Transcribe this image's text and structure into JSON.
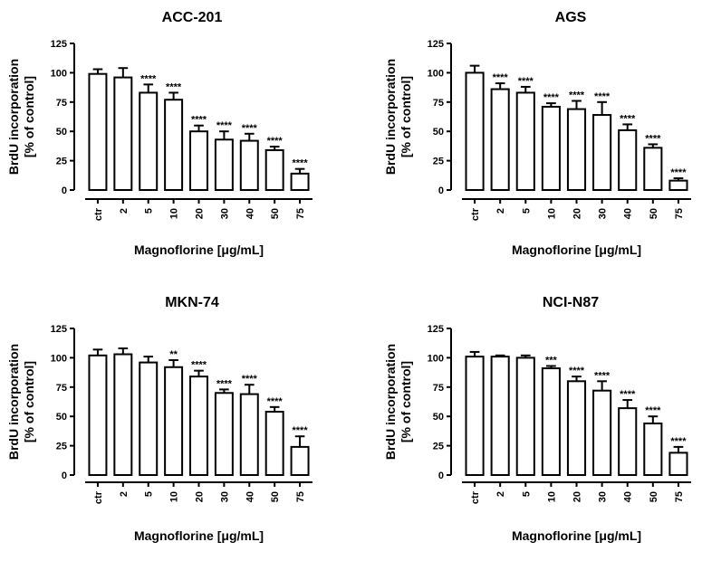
{
  "chart_data": [
    {
      "type": "bar",
      "title": "ACC-201",
      "ylabel": [
        "BrdU incorporation",
        "[% of control]"
      ],
      "xlabel": "Magnoflorine [μg/mL]",
      "categories": [
        "ctr",
        "2",
        "5",
        "10",
        "20",
        "30",
        "40",
        "50",
        "75"
      ],
      "values": [
        99,
        96,
        83,
        77,
        50,
        43,
        42,
        34,
        14
      ],
      "errors": [
        4,
        8,
        7,
        6,
        5,
        7,
        6,
        3,
        4
      ],
      "significance": [
        "",
        "",
        "****",
        "****",
        "****",
        "****",
        "****",
        "****",
        "****"
      ],
      "ylim": [
        0,
        125
      ],
      "yticks": [
        "0",
        "25",
        "50",
        "75",
        "100",
        "125"
      ]
    },
    {
      "type": "bar",
      "title": "AGS",
      "ylabel": [
        "BrdU incorporation",
        "[% of control]"
      ],
      "xlabel": "Magnoflorine [μg/mL]",
      "categories": [
        "ctr",
        "2",
        "5",
        "10",
        "20",
        "30",
        "40",
        "50",
        "75"
      ],
      "values": [
        100,
        86,
        83,
        71,
        69,
        64,
        51,
        36,
        8
      ],
      "errors": [
        6,
        5,
        5,
        3,
        7,
        11,
        5,
        3,
        2
      ],
      "significance": [
        "",
        "****",
        "****",
        "****",
        "****",
        "****",
        "****",
        "****",
        "****"
      ],
      "ylim": [
        0,
        125
      ],
      "yticks": [
        "0",
        "25",
        "50",
        "75",
        "100",
        "125"
      ]
    },
    {
      "type": "bar",
      "title": "MKN-74",
      "ylabel": [
        "BrdU incorporation",
        "[% of control]"
      ],
      "xlabel": "Magnoflorine [μg/mL]",
      "categories": [
        "ctr",
        "2",
        "5",
        "10",
        "20",
        "30",
        "40",
        "50",
        "75"
      ],
      "values": [
        102,
        103,
        96,
        92,
        84,
        70,
        69,
        54,
        24
      ],
      "errors": [
        5,
        5,
        5,
        6,
        5,
        3,
        8,
        4,
        9
      ],
      "significance": [
        "",
        "",
        "",
        "**",
        "****",
        "****",
        "****",
        "****",
        "****"
      ],
      "ylim": [
        0,
        125
      ],
      "yticks": [
        "0",
        "25",
        "50",
        "75",
        "100",
        "125"
      ]
    },
    {
      "type": "bar",
      "title": "NCI-N87",
      "ylabel": [
        "BrdU incorporation",
        "[% of control]"
      ],
      "xlabel": "Magnoflorine [μg/mL]",
      "categories": [
        "ctr",
        "2",
        "5",
        "10",
        "20",
        "30",
        "40",
        "50",
        "75"
      ],
      "values": [
        101,
        101,
        100,
        91,
        80,
        72,
        57,
        44,
        19
      ],
      "errors": [
        4,
        1,
        2,
        2,
        4,
        8,
        7,
        6,
        5
      ],
      "significance": [
        "",
        "",
        "",
        "***",
        "****",
        "****",
        "****",
        "****",
        "****"
      ],
      "ylim": [
        0,
        125
      ],
      "yticks": [
        "0",
        "25",
        "50",
        "75",
        "100",
        "125"
      ]
    }
  ]
}
